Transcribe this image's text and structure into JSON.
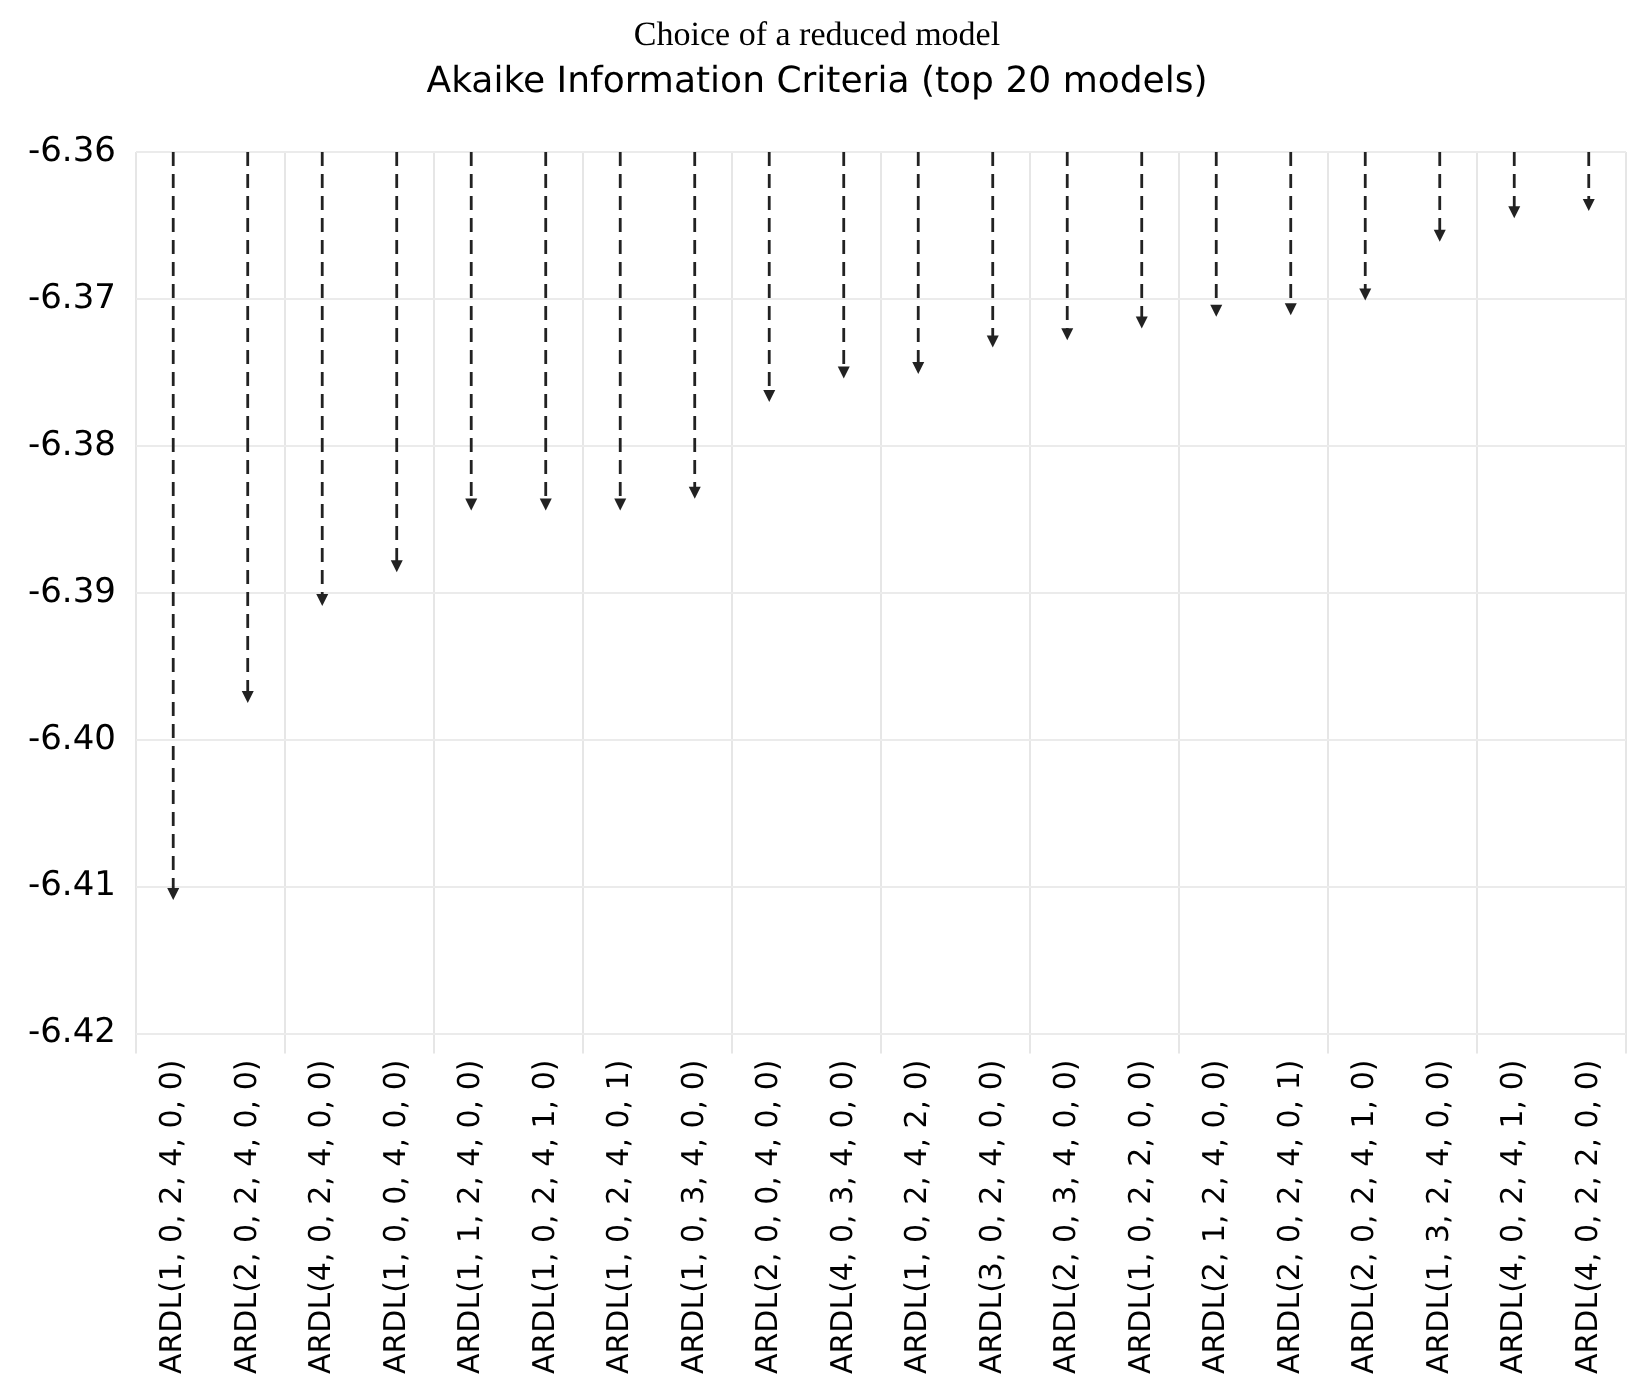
{
  "chart_data": {
    "type": "lollipop",
    "title": "Choice of a reduced model",
    "subtitle": "Akaike Information Criteria (top 20 models)",
    "categories": [
      "ARDL(1, 0, 2, 4, 0, 0)",
      "ARDL(2, 0, 2, 4, 0, 0)",
      "ARDL(4, 0, 2, 4, 0, 0)",
      "ARDL(1, 0, 0, 4, 0, 0)",
      "ARDL(1, 1, 2, 4, 0, 0)",
      "ARDL(1, 0, 2, 4, 1, 0)",
      "ARDL(1, 0, 2, 4, 0, 1)",
      "ARDL(1, 0, 3, 4, 0, 0)",
      "ARDL(2, 0, 0, 4, 0, 0)",
      "ARDL(4, 0, 3, 4, 0, 0)",
      "ARDL(1, 0, 2, 4, 2, 0)",
      "ARDL(3, 0, 2, 4, 0, 0)",
      "ARDL(2, 0, 3, 4, 0, 0)",
      "ARDL(1, 0, 2, 2, 0, 0)",
      "ARDL(2, 1, 2, 4, 0, 0)",
      "ARDL(2, 0, 2, 4, 0, 1)",
      "ARDL(2, 0, 2, 4, 1, 0)",
      "ARDL(1, 3, 2, 4, 0, 0)",
      "ARDL(4, 0, 2, 4, 1, 0)",
      "ARDL(4, 0, 2, 2, 0, 0)"
    ],
    "values": [
      -6.4105,
      -6.3971,
      -6.3905,
      -6.3882,
      -6.384,
      -6.384,
      -6.384,
      -6.3832,
      -6.3766,
      -6.375,
      -6.3747,
      -6.3729,
      -6.3724,
      -6.3716,
      -6.3708,
      -6.3707,
      -6.3697,
      -6.3657,
      -6.3641,
      -6.3636
    ],
    "color": "#222222",
    "line_style": "dashed",
    "marker": "triangle",
    "ylim": [
      -6.42,
      -6.36
    ],
    "yticks": [
      {
        "value": -6.42,
        "label": "-6.42"
      },
      {
        "value": -6.41,
        "label": "-6.41"
      },
      {
        "value": -6.4,
        "label": "-6.40"
      },
      {
        "value": -6.39,
        "label": "-6.39"
      },
      {
        "value": -6.38,
        "label": "-6.38"
      },
      {
        "value": -6.37,
        "label": "-6.37"
      },
      {
        "value": -6.36,
        "label": "-6.36"
      }
    ],
    "grid": true,
    "legend": false
  }
}
